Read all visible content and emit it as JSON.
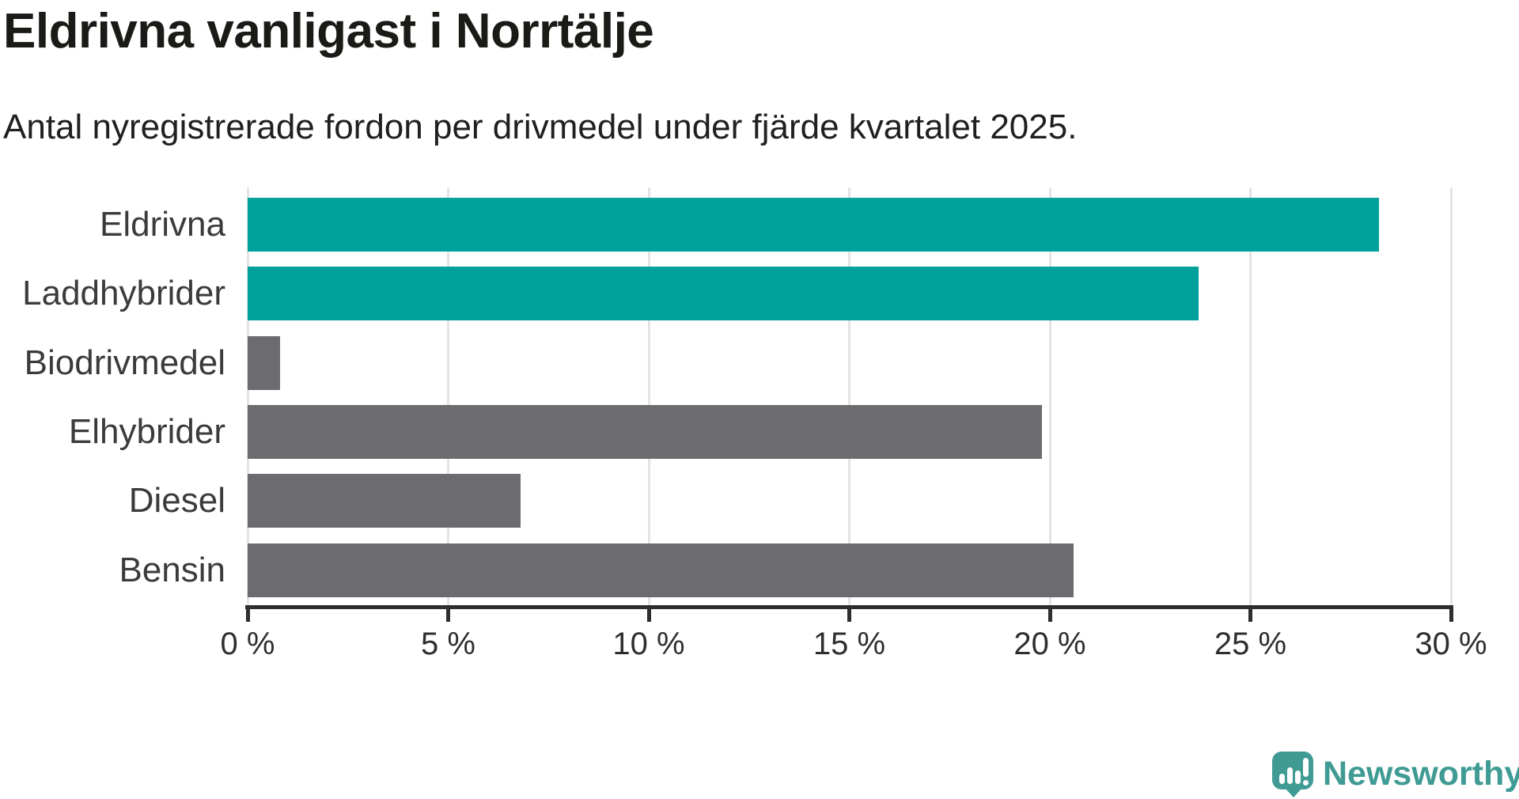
{
  "header": {
    "title": "Eldrivna vanligast i Norrtälje",
    "subtitle": "Antal nyregistrerade fordon per drivmedel under fjärde kvartalet 2025."
  },
  "chart_data": {
    "type": "bar",
    "orientation": "horizontal",
    "title": "Eldrivna vanligast i Norrtälje",
    "subtitle": "Antal nyregistrerade fordon per drivmedel under fjärde kvartalet 2025.",
    "categories": [
      "Eldrivna",
      "Laddhybrider",
      "Biodrivmedel",
      "Elhybrider",
      "Diesel",
      "Bensin"
    ],
    "values": [
      28.2,
      23.7,
      0.8,
      19.8,
      6.8,
      20.6
    ],
    "unit": "%",
    "highlighted_categories": [
      "Eldrivna",
      "Laddhybrider"
    ],
    "highlight_color": "#00a19b",
    "default_color": "#6c6c70",
    "xlim": [
      0,
      30
    ],
    "x_ticks": [
      {
        "value": 0,
        "label": "0 %"
      },
      {
        "value": 5,
        "label": "5 %"
      },
      {
        "value": 10,
        "label": "10 %"
      },
      {
        "value": 15,
        "label": "15 %"
      },
      {
        "value": 20,
        "label": "20 %"
      },
      {
        "value": 25,
        "label": "25 %"
      },
      {
        "value": 30,
        "label": "30 %"
      }
    ],
    "grid": true,
    "legend": false
  },
  "colors": {
    "background": "#ffffff",
    "gridline": "#e4e4e4",
    "axis": "#2e2e2e",
    "label_text": "#3b3b3b",
    "brand_teal": "#3f9b94"
  },
  "footer": {
    "brand": "Newsworthy"
  }
}
